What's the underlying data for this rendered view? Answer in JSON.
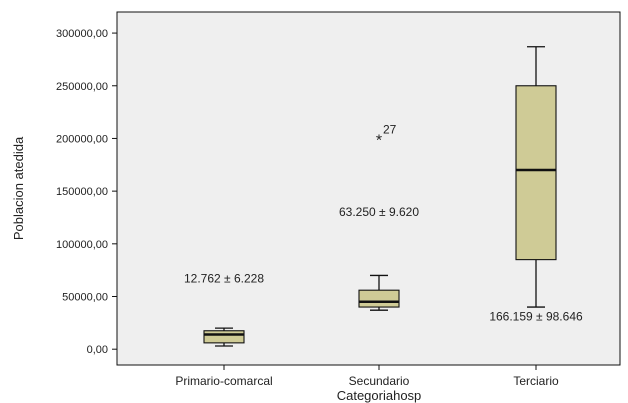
{
  "chart_data": {
    "type": "boxplot",
    "xlabel": "Categoriahosp",
    "ylabel": "Poblacion atedida",
    "ylim": [
      -15000,
      320000
    ],
    "yticks": [
      0,
      50000,
      100000,
      150000,
      200000,
      250000,
      300000
    ],
    "ytick_labels": [
      "0,00",
      "50000,00",
      "100000,00",
      "150000,00",
      "200000,00",
      "250000,00",
      "300000,00"
    ],
    "grid": false,
    "colors": {
      "plot_bg": "#efefef",
      "box_fill": "#cfcb96",
      "stroke": "#111111"
    },
    "categories": [
      "Primario-comarcal",
      "Secundario",
      "Terciario"
    ],
    "boxes": [
      {
        "category": "Primario-comarcal",
        "min": 3000,
        "q1": 6000,
        "median": 14000,
        "q3": 17500,
        "max": 20000,
        "outliers": []
      },
      {
        "category": "Secundario",
        "min": 37000,
        "q1": 40000,
        "median": 45000,
        "q3": 56000,
        "max": 70000,
        "outliers": [
          {
            "value": 200000,
            "marker": "*",
            "label": "27"
          }
        ]
      },
      {
        "category": "Terciario",
        "min": 40000,
        "q1": 85000,
        "median": 170000,
        "q3": 250000,
        "max": 287000,
        "outliers": []
      }
    ],
    "annotations": [
      {
        "text": "12.762 ± 6.228",
        "category": "Primario-comarcal",
        "y": 67000
      },
      {
        "text": "63.250 ± 9.620",
        "category": "Secundario",
        "y": 130000
      },
      {
        "text": "166.159 ± 98.646",
        "category": "Terciario",
        "y": 31000
      }
    ]
  }
}
